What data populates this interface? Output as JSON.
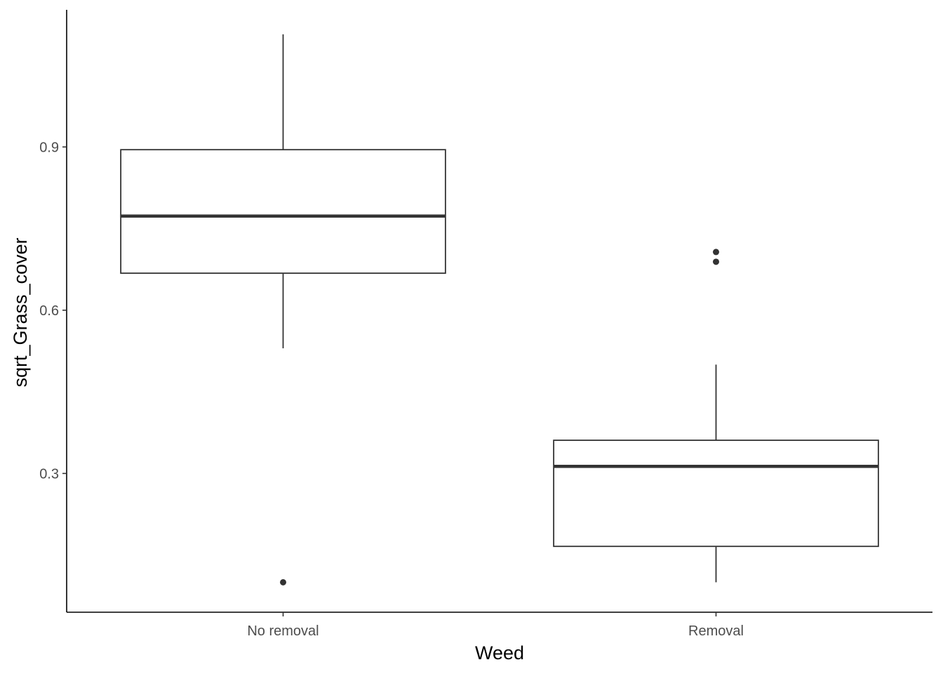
{
  "chart_data": {
    "type": "boxplot",
    "title": "",
    "xlabel": "Weed",
    "ylabel": "sqrt_Grass_cover",
    "categories": [
      "No removal",
      "Removal"
    ],
    "boxes": [
      {
        "category": "No removal",
        "whisker_low": 0.53,
        "q1": 0.668,
        "median": 0.773,
        "q3": 0.895,
        "whisker_high": 1.107,
        "outliers": [
          0.1
        ]
      },
      {
        "category": "Removal",
        "whisker_low": 0.1,
        "q1": 0.166,
        "median": 0.313,
        "q3": 0.361,
        "whisker_high": 0.5,
        "outliers": [
          0.689,
          0.707
        ]
      }
    ],
    "y_ticks": [
      0.3,
      0.6,
      0.9
    ],
    "y_tick_labels": [
      "0.3",
      "0.6",
      "0.9"
    ],
    "ylim": [
      0.045,
      1.152
    ],
    "grid": false,
    "legend": "none",
    "colors": {
      "box_fill": "#ffffff",
      "box_stroke": "#333333",
      "axis": "#000000",
      "tick_text": "#4d4d4d"
    }
  }
}
